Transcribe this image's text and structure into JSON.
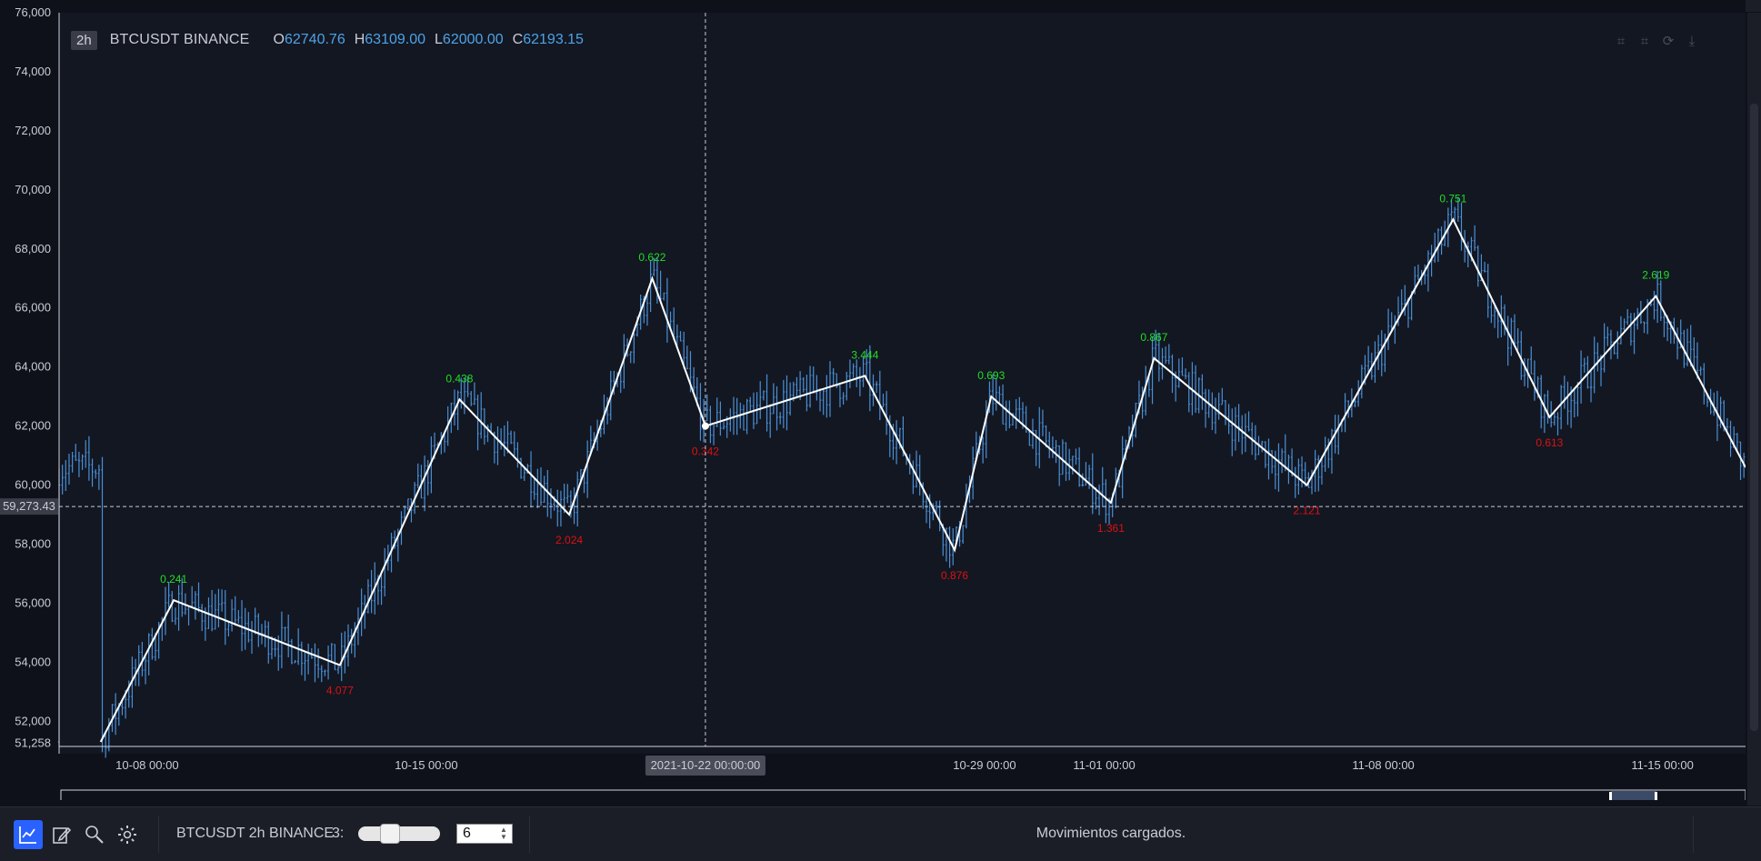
{
  "legend": {
    "interval": "2h",
    "symbol": "BTCUSDT BINANCE",
    "open_label": "O",
    "open": "62740.76",
    "high_label": "H",
    "high": "63109.00",
    "low_label": "L",
    "low": "62000.00",
    "close_label": "C",
    "close": "62193.15"
  },
  "toolbar": {
    "symbol_text": "BTCUSDT 2h BINANCE",
    "depth_label": "3:",
    "depth_value": "6",
    "status": "Movimientos cargados."
  },
  "icons": {
    "chart": "line-chart-icon",
    "draw": "pencil-icon",
    "zoom": "magnifier-icon",
    "settings": "gear-icon",
    "tools": [
      "crop-icon",
      "crop-alt-icon",
      "refresh-icon",
      "download-icon"
    ]
  },
  "colors": {
    "background": "#0e111a",
    "candle": "#4a8fd4",
    "zigzag": "#ffffff",
    "peak_label": "#22dd22",
    "trough_label": "#dd1111",
    "accent": "#2962ff"
  },
  "chart_data": {
    "type": "line",
    "y_axis": {
      "range": [
        50900,
        76000
      ],
      "ticks": [
        "76,000",
        "74,000",
        "72,000",
        "70,000",
        "68,000",
        "66,000",
        "64,000",
        "62,000",
        "60,000",
        "58,000",
        "56,000",
        "54,000",
        "52,000"
      ],
      "tick_values": [
        76000,
        74000,
        72000,
        70000,
        68000,
        66000,
        64000,
        62000,
        60000,
        58000,
        56000,
        54000,
        52000
      ],
      "min_label": "51,258",
      "min_value": 51258
    },
    "x_axis": {
      "range": [
        "2021-10-05 19:00",
        "2021-11-17 02:00"
      ],
      "ticks": [
        "10-08 00:00",
        "10-15 00:00",
        "10-29 00:00",
        "11-01 00:00",
        "11-08 00:00",
        "11-15 00:00"
      ],
      "tick_values": [
        "2021-10-08 00:00",
        "2021-10-15 00:00",
        "2021-10-29 00:00",
        "2021-11-01 00:00",
        "2021-11-08 00:00",
        "2021-11-15 00:00"
      ]
    },
    "crosshair": {
      "x_label": "2021-10-22 00:00:00",
      "x": "2021-10-22 00:00",
      "y_label": "59,273.43",
      "y": 59273.43
    },
    "zigzag": [
      {
        "t": "2021-10-06 20:00",
        "price": 51300,
        "label": ""
      },
      {
        "t": "2021-10-08 16:00",
        "price": 56100,
        "label": "0.241"
      },
      {
        "t": "2021-10-12 20:00",
        "price": 53900,
        "label": "4.077"
      },
      {
        "t": "2021-10-15 20:00",
        "price": 62900,
        "label": "0.438"
      },
      {
        "t": "2021-10-18 14:00",
        "price": 59000,
        "label": "2.024"
      },
      {
        "t": "2021-10-20 16:00",
        "price": 67000,
        "label": "0.622"
      },
      {
        "t": "2021-10-22 00:00",
        "price": 62000,
        "label": "0.342"
      },
      {
        "t": "2021-10-26 00:00",
        "price": 63700,
        "label": "3.444"
      },
      {
        "t": "2021-10-28 06:00",
        "price": 57800,
        "label": "0.876"
      },
      {
        "t": "2021-10-29 04:00",
        "price": 63000,
        "label": "0.693"
      },
      {
        "t": "2021-11-01 04:00",
        "price": 59400,
        "label": "1.361"
      },
      {
        "t": "2021-11-02 06:00",
        "price": 64300,
        "label": "0.867"
      },
      {
        "t": "2021-11-06 02:00",
        "price": 60000,
        "label": "2.121"
      },
      {
        "t": "2021-11-09 18:00",
        "price": 69000,
        "label": "0.751"
      },
      {
        "t": "2021-11-12 04:00",
        "price": 62300,
        "label": "0.613"
      },
      {
        "t": "2021-11-14 20:00",
        "price": 66400,
        "label": "2.619"
      },
      {
        "t": "2021-11-17 02:00",
        "price": 60600,
        "label": ""
      }
    ]
  }
}
